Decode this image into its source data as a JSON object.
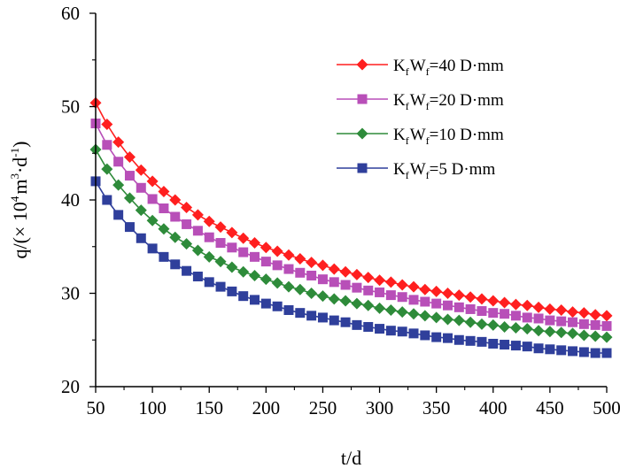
{
  "chart_data": {
    "type": "line",
    "xlabel": "t/d",
    "ylabel": {
      "prefix": "q/(×",
      "unit_a": "10",
      "unit_a_sup": "4",
      "unit_b": "m",
      "unit_b_sup": "3",
      "unit_c": "·d",
      "unit_c_sup": "-1",
      "suffix": ")"
    },
    "xlim": [
      50,
      500
    ],
    "ylim": [
      20,
      60
    ],
    "xticks": [
      50,
      100,
      150,
      200,
      250,
      300,
      350,
      400,
      450,
      500
    ],
    "yticks": [
      20,
      30,
      40,
      50,
      60
    ],
    "grid": false,
    "legend_position": "top-right",
    "x": [
      50,
      60,
      70,
      80,
      90,
      100,
      110,
      120,
      130,
      140,
      150,
      160,
      170,
      180,
      190,
      200,
      210,
      220,
      230,
      240,
      250,
      260,
      270,
      280,
      290,
      300,
      310,
      320,
      330,
      340,
      350,
      360,
      370,
      380,
      390,
      400,
      410,
      420,
      430,
      440,
      450,
      460,
      470,
      480,
      490,
      500
    ],
    "series": [
      {
        "name": "KfWf=40 D·mm",
        "label": {
          "k": "K",
          "k_sub": "f",
          "w": "W",
          "w_sub": "f",
          "value": "=40 D·mm"
        },
        "color": "#ff1f1f",
        "marker": "diamond",
        "values": [
          50.4,
          48.1,
          46.2,
          44.6,
          43.2,
          42.0,
          40.9,
          40.0,
          39.2,
          38.4,
          37.7,
          37.1,
          36.5,
          35.9,
          35.4,
          34.9,
          34.5,
          34.1,
          33.7,
          33.3,
          33.0,
          32.6,
          32.3,
          32.0,
          31.7,
          31.4,
          31.2,
          30.9,
          30.7,
          30.4,
          30.2,
          30.0,
          29.8,
          29.6,
          29.4,
          29.2,
          29.0,
          28.8,
          28.7,
          28.5,
          28.3,
          28.2,
          28.0,
          27.9,
          27.7,
          27.6
        ]
      },
      {
        "name": "KfWf=20 D·mm",
        "label": {
          "k": "K",
          "k_sub": "f",
          "w": "W",
          "w_sub": "f",
          "value": "=20 D·mm"
        },
        "color": "#b84fb8",
        "marker": "square",
        "values": [
          48.2,
          45.9,
          44.1,
          42.6,
          41.3,
          40.1,
          39.1,
          38.2,
          37.4,
          36.7,
          36.0,
          35.4,
          34.9,
          34.4,
          33.9,
          33.4,
          33.0,
          32.6,
          32.2,
          31.9,
          31.5,
          31.2,
          30.9,
          30.6,
          30.3,
          30.1,
          29.8,
          29.6,
          29.3,
          29.1,
          28.9,
          28.7,
          28.5,
          28.3,
          28.1,
          27.9,
          27.8,
          27.6,
          27.4,
          27.3,
          27.1,
          27.0,
          26.9,
          26.7,
          26.6,
          26.5
        ]
      },
      {
        "name": "KfWf=10 D·mm",
        "label": {
          "k": "K",
          "k_sub": "f",
          "w": "W",
          "w_sub": "f",
          "value": "=10 D·mm"
        },
        "color": "#2e8b3a",
        "marker": "diamond",
        "values": [
          45.4,
          43.3,
          41.6,
          40.2,
          38.9,
          37.8,
          36.9,
          36.0,
          35.3,
          34.6,
          33.9,
          33.4,
          32.8,
          32.3,
          31.9,
          31.5,
          31.1,
          30.7,
          30.4,
          30.0,
          29.7,
          29.4,
          29.2,
          28.9,
          28.7,
          28.4,
          28.2,
          28.0,
          27.8,
          27.6,
          27.4,
          27.2,
          27.1,
          26.9,
          26.7,
          26.6,
          26.4,
          26.3,
          26.2,
          26.0,
          25.9,
          25.8,
          25.7,
          25.5,
          25.4,
          25.3
        ]
      },
      {
        "name": "KfWf=5 D·mm",
        "label": {
          "k": "K",
          "k_sub": "f",
          "w": "W",
          "w_sub": "f",
          "value": "=5 D·mm"
        },
        "color": "#2f3f9b",
        "marker": "square",
        "values": [
          42.0,
          40.0,
          38.4,
          37.1,
          35.9,
          34.8,
          33.9,
          33.1,
          32.4,
          31.8,
          31.2,
          30.7,
          30.2,
          29.7,
          29.3,
          28.9,
          28.6,
          28.2,
          27.9,
          27.6,
          27.4,
          27.1,
          26.9,
          26.6,
          26.4,
          26.2,
          26.0,
          25.9,
          25.7,
          25.5,
          25.3,
          25.2,
          25.0,
          24.9,
          24.8,
          24.6,
          24.5,
          24.4,
          24.3,
          24.1,
          24.0,
          23.9,
          23.8,
          23.7,
          23.6,
          23.6
        ]
      }
    ]
  }
}
